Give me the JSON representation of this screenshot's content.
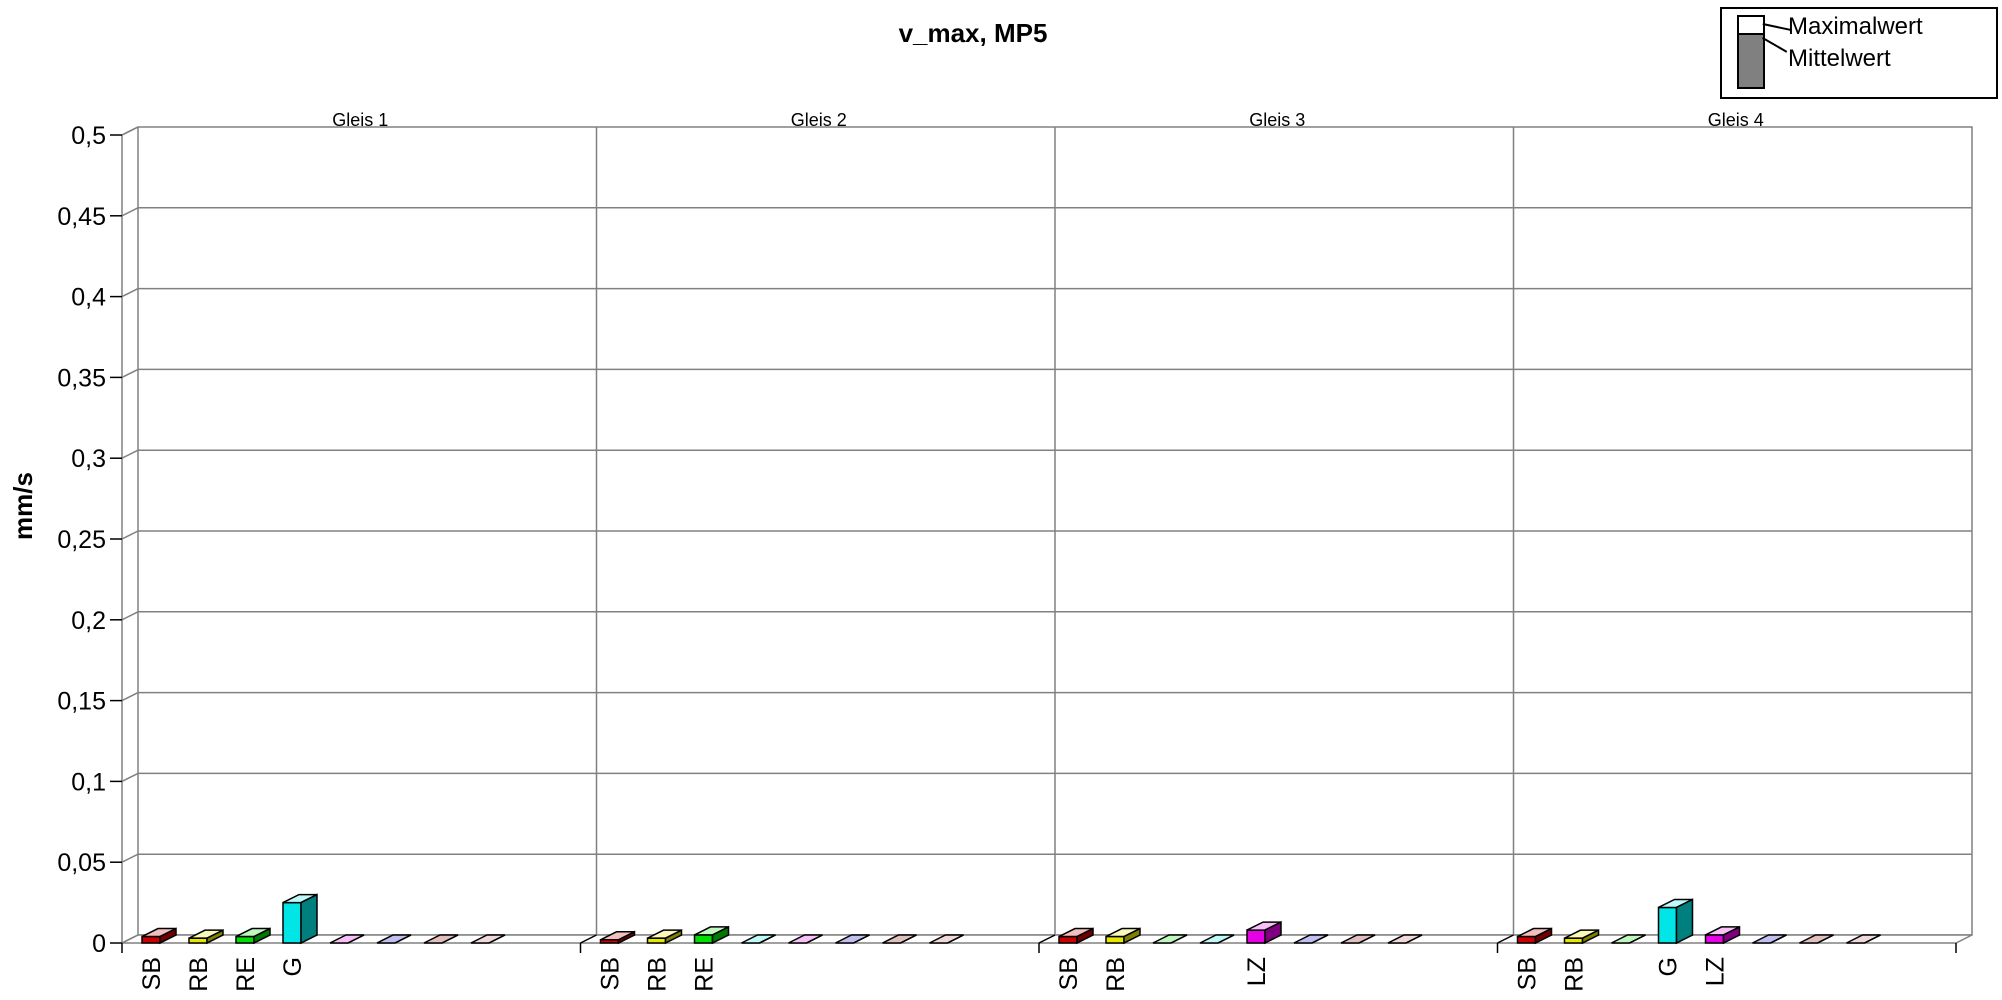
{
  "chart_data": {
    "type": "bar",
    "title": "v_max, MP5",
    "ylabel": "mm/s",
    "ylim": [
      0,
      0.5
    ],
    "yticks": [
      "0",
      "0,05",
      "0,1",
      "0,15",
      "0,2",
      "0,25",
      "0,3",
      "0,35",
      "0,4",
      "0,45",
      "0,5"
    ],
    "grid": true,
    "legend_position": "top-right",
    "legend": [
      {
        "name": "Maximalwert",
        "color": "#ffffff"
      },
      {
        "name": "Mittelwert",
        "color": "#808080"
      }
    ],
    "series_colors": [
      "#cc0000",
      "#e6e600",
      "#00dd00",
      "#00e6e6",
      "#e600e6",
      "#0000cc",
      "#880000",
      "#cc6666"
    ],
    "panels": [
      {
        "name": "Gleis 1",
        "categories": [
          "SB",
          "RB",
          "RE",
          "G",
          "",
          "",
          "",
          ""
        ],
        "values": [
          0.004,
          0.003,
          0.004,
          0.025,
          0,
          0,
          0,
          0
        ]
      },
      {
        "name": "Gleis 2",
        "categories": [
          "SB",
          "RB",
          "RE",
          "",
          "",
          "",
          "",
          ""
        ],
        "values": [
          0.002,
          0.003,
          0.005,
          0,
          0,
          0,
          0,
          0
        ]
      },
      {
        "name": "Gleis 3",
        "categories": [
          "SB",
          "RB",
          "",
          "",
          "LZ",
          "",
          "",
          ""
        ],
        "values": [
          0.004,
          0.004,
          0,
          0,
          0.008,
          0,
          0,
          0
        ]
      },
      {
        "name": "Gleis 4",
        "categories": [
          "SB",
          "RB",
          "",
          "G",
          "LZ",
          "",
          "",
          ""
        ],
        "values": [
          0.004,
          0.003,
          0,
          0.022,
          0.005,
          0,
          0,
          0
        ]
      }
    ]
  }
}
